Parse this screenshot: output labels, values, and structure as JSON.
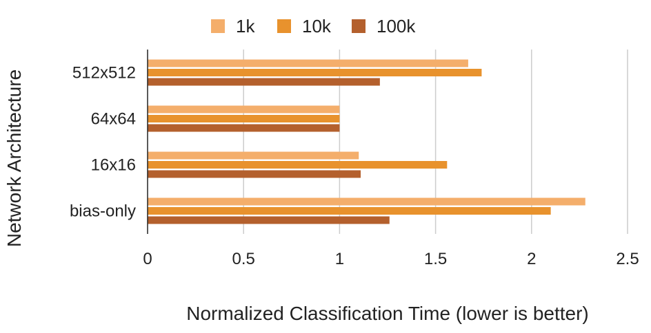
{
  "chart_data": {
    "type": "bar",
    "orientation": "horizontal",
    "title": "",
    "xlabel": "Normalized Classification Time (lower is better)",
    "ylabel": "Network Architecture",
    "categories": [
      "512x512",
      "64x64",
      "16x16",
      "bias-only"
    ],
    "series": [
      {
        "name": "1k",
        "color": "#F4AE6B",
        "values": [
          1.67,
          1.0,
          1.1,
          2.28
        ]
      },
      {
        "name": "10k",
        "color": "#E8922D",
        "values": [
          1.74,
          1.0,
          1.56,
          2.1
        ]
      },
      {
        "name": "100k",
        "color": "#B4602D",
        "values": [
          1.21,
          1.0,
          1.11,
          1.26
        ]
      }
    ],
    "xlim": [
      0,
      2.5
    ],
    "xticks": [
      "0",
      "0.5",
      "1",
      "1.5",
      "2",
      "2.5"
    ],
    "xtick_values": [
      0,
      0.5,
      1,
      1.5,
      2,
      2.5
    ],
    "grid": "vertical",
    "legend_position": "top-center"
  }
}
